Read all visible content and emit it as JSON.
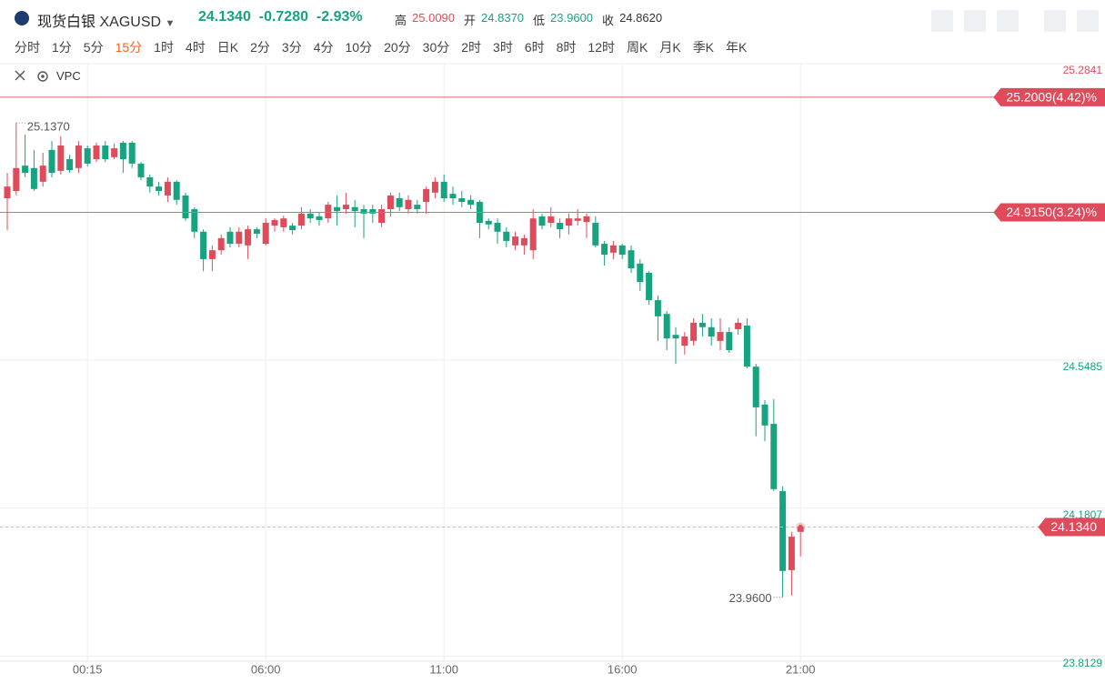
{
  "header": {
    "name": "现货白银",
    "code": "XAGUSD",
    "price": "24.1340",
    "change": "-0.7280",
    "change_pct": "-2.93%",
    "quote_color": "#17a37f",
    "stats": [
      {
        "name": "高",
        "value": 25.009,
        "label": "25.0090"
      },
      {
        "name": "开",
        "value": 24.837,
        "label": "24.8370"
      },
      {
        "name": "低",
        "value": 23.96,
        "label": "23.9600"
      },
      {
        "name": "收",
        "value": 24.862,
        "label": "24.8620"
      }
    ]
  },
  "timeframes": {
    "items": [
      "分时",
      "1分",
      "5分",
      "15分",
      "1时",
      "4时",
      "日K",
      "2分",
      "3分",
      "4分",
      "10分",
      "20分",
      "30分",
      "2时",
      "3时",
      "6时",
      "8时",
      "12时",
      "周K",
      "月K",
      "季K",
      "年K"
    ],
    "active": 3,
    "active_color": "#f5661e"
  },
  "indicator": "VPC",
  "chart_data": {
    "type": "candlestick",
    "up_color": "#e04b5b",
    "down_color": "#17a37f",
    "grid": true,
    "categories": [
      null,
      null,
      null,
      null,
      null,
      null,
      null,
      null,
      null,
      "00:15",
      null,
      null,
      null,
      null,
      null,
      null,
      null,
      null,
      null,
      null,
      null,
      null,
      null,
      null,
      null,
      null,
      null,
      null,
      null,
      "06:00",
      null,
      null,
      null,
      null,
      null,
      null,
      null,
      null,
      null,
      null,
      null,
      null,
      null,
      null,
      null,
      null,
      null,
      null,
      null,
      "11:00",
      null,
      null,
      null,
      null,
      null,
      null,
      null,
      null,
      null,
      null,
      null,
      null,
      null,
      null,
      null,
      null,
      null,
      null,
      null,
      "16:00",
      null,
      null,
      null,
      null,
      null,
      null,
      null,
      null,
      null,
      null,
      null,
      null,
      null,
      null,
      null,
      null,
      null,
      null,
      null,
      "21:00"
    ],
    "open": [
      24.95,
      24.968,
      25.031,
      25.025,
      24.991,
      25.07,
      25.018,
      25.047,
      25.025,
      25.074,
      25.047,
      25.081,
      25.052,
      25.088,
      25.088,
      25.036,
      25.002,
      24.979,
      24.957,
      24.991,
      24.957,
      24.923,
      24.867,
      24.799,
      24.821,
      24.867,
      24.837,
      24.833,
      24.873,
      24.837,
      24.882,
      24.878,
      24.882,
      24.882,
      24.912,
      24.905,
      24.9,
      24.928,
      24.923,
      24.928,
      24.923,
      24.923,
      24.889,
      24.923,
      24.95,
      24.923,
      24.934,
      24.941,
      24.964,
      24.991,
      24.961,
      24.95,
      24.946,
      24.941,
      24.894,
      24.889,
      24.867,
      24.833,
      24.833,
      24.821,
      24.905,
      24.889,
      24.889,
      24.882,
      24.894,
      24.891,
      24.889,
      24.837,
      24.815,
      24.833,
      24.821,
      24.788,
      24.765,
      24.697,
      24.663,
      24.611,
      24.584,
      24.596,
      24.641,
      24.63,
      24.596,
      24.618,
      24.625,
      24.634,
      24.532,
      24.438,
      24.39,
      24.223,
      24.027,
      24.122
    ],
    "high": [
      25.013,
      25.137,
      25.108,
      25.07,
      25.063,
      25.092,
      25.104,
      25.058,
      25.092,
      25.081,
      25.088,
      25.092,
      25.086,
      25.092,
      25.092,
      25.04,
      25.009,
      24.991,
      25.002,
      24.995,
      24.964,
      24.928,
      24.873,
      24.833,
      24.86,
      24.878,
      24.878,
      24.882,
      24.878,
      24.9,
      24.9,
      24.907,
      24.889,
      24.928,
      24.923,
      24.916,
      24.941,
      24.957,
      24.964,
      24.946,
      24.934,
      24.934,
      24.934,
      24.964,
      24.964,
      24.957,
      24.946,
      24.979,
      25.002,
      25.009,
      24.979,
      24.968,
      24.957,
      24.946,
      24.9,
      24.9,
      24.878,
      24.867,
      24.86,
      24.923,
      24.912,
      24.928,
      24.9,
      24.912,
      24.923,
      24.912,
      24.905,
      24.844,
      24.844,
      24.837,
      24.833,
      24.799,
      24.769,
      24.709,
      24.67,
      24.63,
      24.618,
      24.652,
      24.663,
      24.652,
      24.652,
      24.63,
      24.652,
      24.652,
      24.539,
      24.449,
      24.451,
      24.235,
      24.122,
      24.137
    ],
    "low": [
      24.871,
      24.957,
      25.002,
      24.968,
      24.979,
      25.002,
      25.009,
      25.013,
      25.013,
      25.029,
      25.04,
      25.04,
      25.047,
      25.013,
      25.025,
      24.995,
      24.964,
      24.957,
      24.941,
      24.934,
      24.894,
      24.851,
      24.769,
      24.769,
      24.81,
      24.828,
      24.828,
      24.799,
      24.851,
      24.833,
      24.867,
      24.867,
      24.86,
      24.873,
      24.889,
      24.882,
      24.889,
      24.882,
      24.912,
      24.878,
      24.851,
      24.889,
      24.878,
      24.905,
      24.918,
      24.912,
      24.912,
      24.912,
      24.95,
      24.941,
      24.934,
      24.928,
      24.923,
      24.851,
      24.873,
      24.837,
      24.828,
      24.821,
      24.81,
      24.799,
      24.873,
      24.878,
      24.851,
      24.86,
      24.882,
      24.851,
      24.828,
      24.783,
      24.799,
      24.799,
      24.765,
      24.72,
      24.686,
      24.596,
      24.573,
      24.539,
      24.562,
      24.584,
      24.607,
      24.584,
      24.573,
      24.566,
      24.611,
      24.528,
      24.359,
      24.347,
      24.223,
      23.96,
      23.964,
      24.061
    ],
    "close": [
      24.979,
      25.025,
      25.013,
      24.973,
      25.031,
      25.013,
      25.081,
      25.02,
      25.081,
      25.036,
      25.081,
      25.047,
      25.074,
      25.047,
      25.036,
      25.002,
      24.979,
      24.968,
      24.991,
      24.946,
      24.9,
      24.867,
      24.799,
      24.821,
      24.851,
      24.837,
      24.867,
      24.873,
      24.862,
      24.889,
      24.896,
      24.9,
      24.871,
      24.912,
      24.9,
      24.896,
      24.934,
      24.918,
      24.934,
      24.918,
      24.912,
      24.912,
      24.923,
      24.957,
      24.928,
      24.946,
      24.923,
      24.973,
      24.991,
      24.95,
      24.95,
      24.941,
      24.934,
      24.889,
      24.885,
      24.867,
      24.844,
      24.855,
      24.851,
      24.9,
      24.882,
      24.905,
      24.873,
      24.9,
      24.9,
      24.905,
      24.833,
      24.81,
      24.833,
      24.81,
      24.776,
      24.742,
      24.697,
      24.657,
      24.602,
      24.602,
      24.607,
      24.641,
      24.63,
      24.607,
      24.618,
      24.573,
      24.641,
      24.532,
      24.431,
      24.386,
      24.228,
      24.025,
      24.11,
      24.134
    ],
    "ylim": [
      23.801,
      25.2841
    ],
    "yticks": [
      23.8129,
      24.1807,
      24.5485,
      25.2841
    ],
    "extreme_labels": {
      "high": "25.1370",
      "low": "23.9600"
    },
    "price_lines": [
      {
        "value": 25.2009,
        "label": "25.2009(4.42)%"
      },
      {
        "value": 24.915,
        "label": "24.9150(3.24)%"
      }
    ],
    "current": {
      "value": 24.134,
      "label": "24.1340"
    }
  }
}
